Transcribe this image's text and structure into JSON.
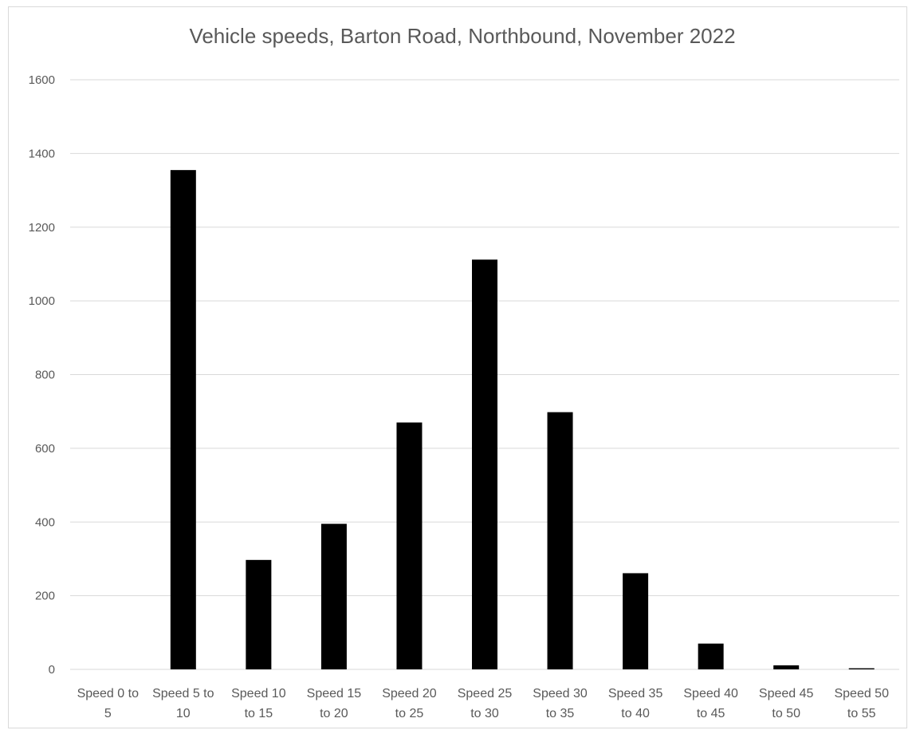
{
  "chart_data": {
    "type": "bar",
    "title": "Vehicle speeds, Barton Road, Northbound, November 2022",
    "xlabel": "",
    "ylabel": "",
    "categories": [
      [
        "Speed 0 to",
        "5"
      ],
      [
        "Speed 5 to",
        "10"
      ],
      [
        "Speed 10",
        "to 15"
      ],
      [
        "Speed 15",
        "to 20"
      ],
      [
        "Speed 20",
        "to 25"
      ],
      [
        "Speed 25",
        "to 30"
      ],
      [
        "Speed 30",
        "to 35"
      ],
      [
        "Speed 35",
        "to 40"
      ],
      [
        "Speed 40",
        "to 45"
      ],
      [
        "Speed 45",
        "to 50"
      ],
      [
        "Speed 50",
        "to 55"
      ]
    ],
    "values": [
      0,
      1355,
      297,
      395,
      670,
      1112,
      698,
      261,
      70,
      11,
      3
    ],
    "ylim": [
      0,
      1600
    ],
    "yticks": [
      0,
      200,
      400,
      600,
      800,
      1000,
      1200,
      1400,
      1600
    ],
    "grid": true,
    "legend": "none",
    "bar_color": "#000000",
    "grid_color": "#d9d9d9",
    "text_color": "#595959"
  }
}
